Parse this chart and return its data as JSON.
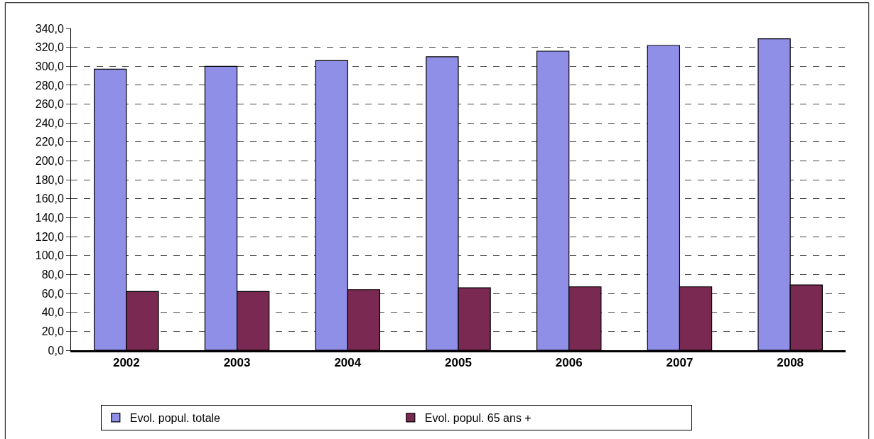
{
  "chart_data": {
    "type": "bar",
    "categories": [
      "2002",
      "2003",
      "2004",
      "2005",
      "2006",
      "2007",
      "2008"
    ],
    "series": [
      {
        "name": "Evol. popul. totale",
        "color": "#8f8fe8",
        "values": [
          297,
          300,
          306,
          310,
          316,
          322,
          329
        ]
      },
      {
        "name": "Evol. popul. 65 ans +",
        "color": "#7a2952",
        "values": [
          62,
          62,
          64,
          66,
          67,
          67,
          69
        ]
      }
    ],
    "ylim": [
      0,
      340
    ],
    "yticks": [
      {
        "value": 0,
        "label": "0,0"
      },
      {
        "value": 20,
        "label": "20,0"
      },
      {
        "value": 40,
        "label": "40,0"
      },
      {
        "value": 60,
        "label": "60,0"
      },
      {
        "value": 80,
        "label": "80,0"
      },
      {
        "value": 100,
        "label": "100,0"
      },
      {
        "value": 120,
        "label": "120,0"
      },
      {
        "value": 140,
        "label": "140,0"
      },
      {
        "value": 160,
        "label": "160,0"
      },
      {
        "value": 180,
        "label": "180,0"
      },
      {
        "value": 200,
        "label": "200,0"
      },
      {
        "value": 220,
        "label": "220,0"
      },
      {
        "value": 240,
        "label": "240,0"
      },
      {
        "value": 260,
        "label": "260,0"
      },
      {
        "value": 280,
        "label": "280,0"
      },
      {
        "value": 300,
        "label": "300,0"
      },
      {
        "value": 320,
        "label": "320,0"
      },
      {
        "value": 340,
        "label": "340,0"
      }
    ],
    "grid": "y",
    "legend": "bottom"
  }
}
